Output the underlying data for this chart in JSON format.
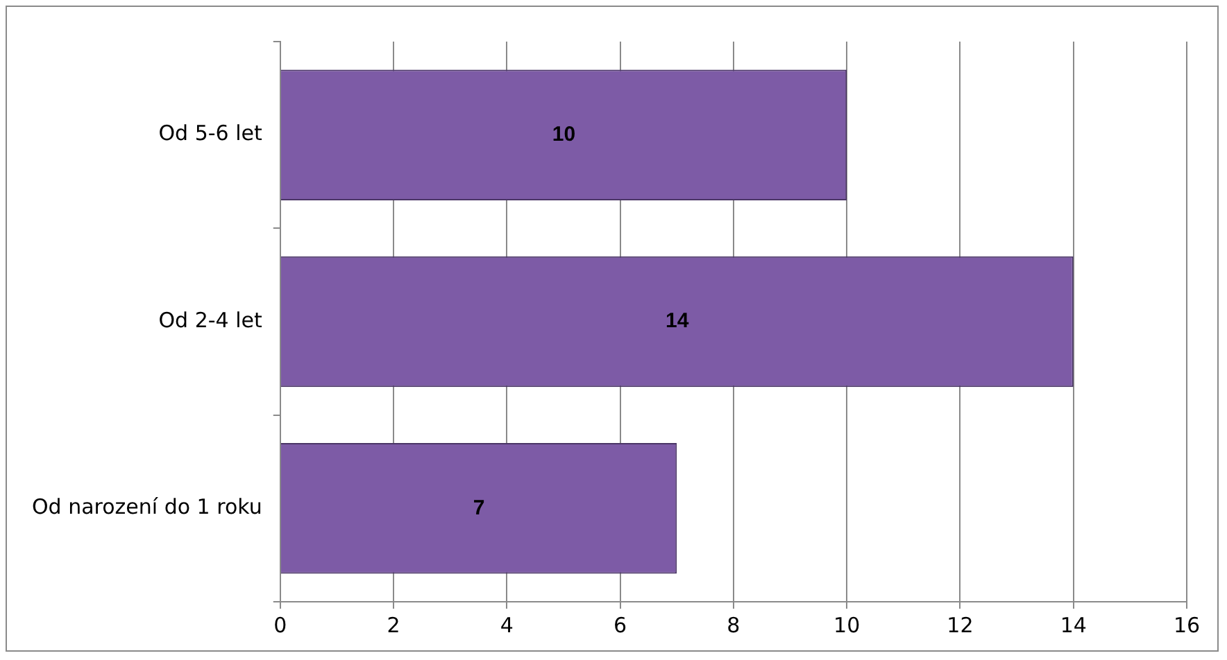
{
  "chart_data": {
    "type": "bar",
    "orientation": "horizontal",
    "categories": [
      "Od 5-6 let",
      "Od 2-4 let",
      "Od narození do 1 roku"
    ],
    "values": [
      10,
      14,
      7
    ],
    "color": "#7d5ba6",
    "xlim": [
      0,
      16
    ],
    "xticks": [
      0,
      2,
      4,
      6,
      8,
      10,
      12,
      14,
      16
    ],
    "grid": "x",
    "data_labels": true,
    "legend": false
  }
}
